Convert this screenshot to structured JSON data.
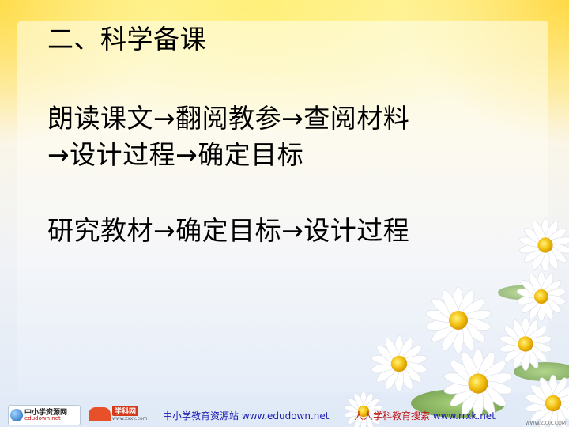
{
  "slide": {
    "lines": [
      "二、科学备课",
      "朗读课文→翻阅教参→查阅材料",
      "→设计过程→确定目标",
      "研究教材→确定目标→设计过程"
    ]
  },
  "footer": {
    "logo1": {
      "title": "中小学资源网",
      "sub": "edudown.net"
    },
    "logo2": {
      "title": "学科网",
      "sub": "www.zxxk.com"
    },
    "site1": "中小学教育资源站 www.edudown.net",
    "site2_label": "人人学科教育搜索",
    "site2_url": "www.rrxk.net",
    "watermark": "WWW.ZXXK.COM"
  },
  "colors": {
    "text": "#000000",
    "footer_blue": "#1a1ab0",
    "footer_red": "#c01010",
    "flower_petal": "#ffffff",
    "flower_center": "#f2c012"
  },
  "decoration": "daisy-flowers"
}
